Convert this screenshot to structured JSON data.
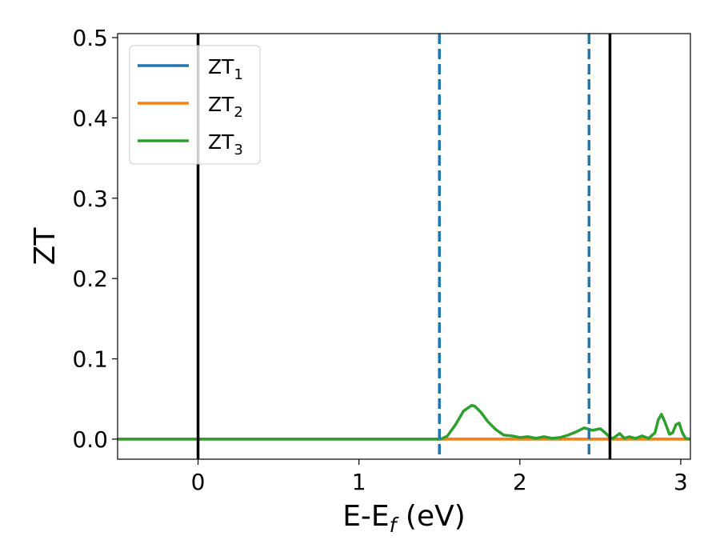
{
  "chart_data": {
    "type": "line",
    "xlabel": {
      "base": "E-E",
      "sub": "f",
      "suffix": " (eV)"
    },
    "ylabel": "ZT",
    "xlim": [
      -0.5,
      3.06
    ],
    "ylim": [
      -0.025,
      0.505
    ],
    "x_ticks": [
      0,
      1,
      2,
      3
    ],
    "x_tick_labels": [
      "0",
      "1",
      "2",
      "3"
    ],
    "y_ticks": [
      0.0,
      0.1,
      0.2,
      0.3,
      0.4,
      0.5
    ],
    "y_tick_labels": [
      "0.0",
      "0.1",
      "0.2",
      "0.3",
      "0.4",
      "0.5"
    ],
    "grid": false,
    "legend_position": "top-left",
    "series": [
      {
        "name": "ZT",
        "sub": "1",
        "color": "#1f77b4",
        "x": [
          -0.5,
          3.06
        ],
        "y": [
          0.0,
          0.0
        ]
      },
      {
        "name": "ZT",
        "sub": "2",
        "color": "#ff7f0e",
        "x": [
          -0.5,
          3.06
        ],
        "y": [
          0.0,
          0.0
        ]
      },
      {
        "name": "ZT",
        "sub": "3",
        "color": "#2ca02c",
        "x": [
          -0.5,
          1.5,
          1.52,
          1.55,
          1.6,
          1.65,
          1.7,
          1.72,
          1.76,
          1.8,
          1.85,
          1.9,
          1.95,
          2.0,
          2.05,
          2.1,
          2.15,
          2.2,
          2.25,
          2.3,
          2.35,
          2.4,
          2.45,
          2.5,
          2.53,
          2.56,
          2.58,
          2.6,
          2.62,
          2.65,
          2.68,
          2.72,
          2.76,
          2.8,
          2.84,
          2.86,
          2.88,
          2.9,
          2.93,
          2.95,
          2.97,
          2.99,
          3.01,
          3.03,
          3.06
        ],
        "y": [
          0.0,
          0.0,
          0.001,
          0.004,
          0.018,
          0.035,
          0.042,
          0.041,
          0.033,
          0.022,
          0.012,
          0.005,
          0.004,
          0.002,
          0.003,
          0.001,
          0.003,
          0.001,
          0.002,
          0.005,
          0.009,
          0.014,
          0.011,
          0.013,
          0.008,
          0.002,
          0.001,
          0.004,
          0.007,
          0.001,
          0.003,
          0.001,
          0.004,
          0.001,
          0.008,
          0.024,
          0.031,
          0.022,
          0.006,
          0.008,
          0.018,
          0.02,
          0.008,
          0.001,
          0.0
        ]
      }
    ],
    "vlines": [
      {
        "x": 0.0,
        "color": "#000000",
        "style": "solid"
      },
      {
        "x": 2.56,
        "color": "#000000",
        "style": "solid"
      },
      {
        "x": 1.5,
        "color": "#1f77b4",
        "style": "dashed"
      },
      {
        "x": 2.43,
        "color": "#1f77b4",
        "style": "dashed"
      }
    ]
  }
}
